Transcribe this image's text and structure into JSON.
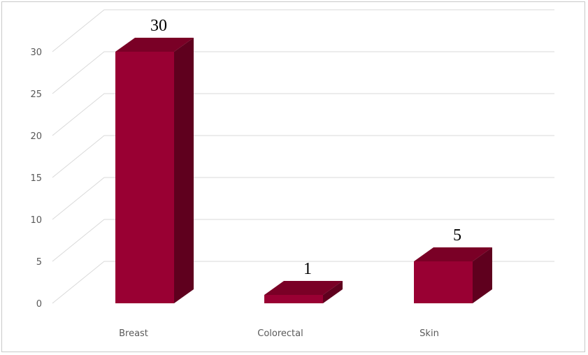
{
  "chart_data": {
    "type": "bar",
    "three_d": true,
    "categories": [
      "Breast",
      "Colorectal",
      "Skin"
    ],
    "values": [
      30,
      1,
      5
    ],
    "data_labels": [
      "30",
      "1",
      "5"
    ],
    "title": "",
    "xlabel": "",
    "ylabel": "",
    "ylim": [
      0,
      30
    ],
    "yticks": [
      "0",
      "5",
      "10",
      "15",
      "20",
      "25",
      "30"
    ],
    "grid": true,
    "legend": "none",
    "colors": {
      "bar_front": "#990033",
      "bar_top": "#7a0026",
      "bar_side": "#5f001e",
      "grid": "#d9d9d9"
    }
  }
}
